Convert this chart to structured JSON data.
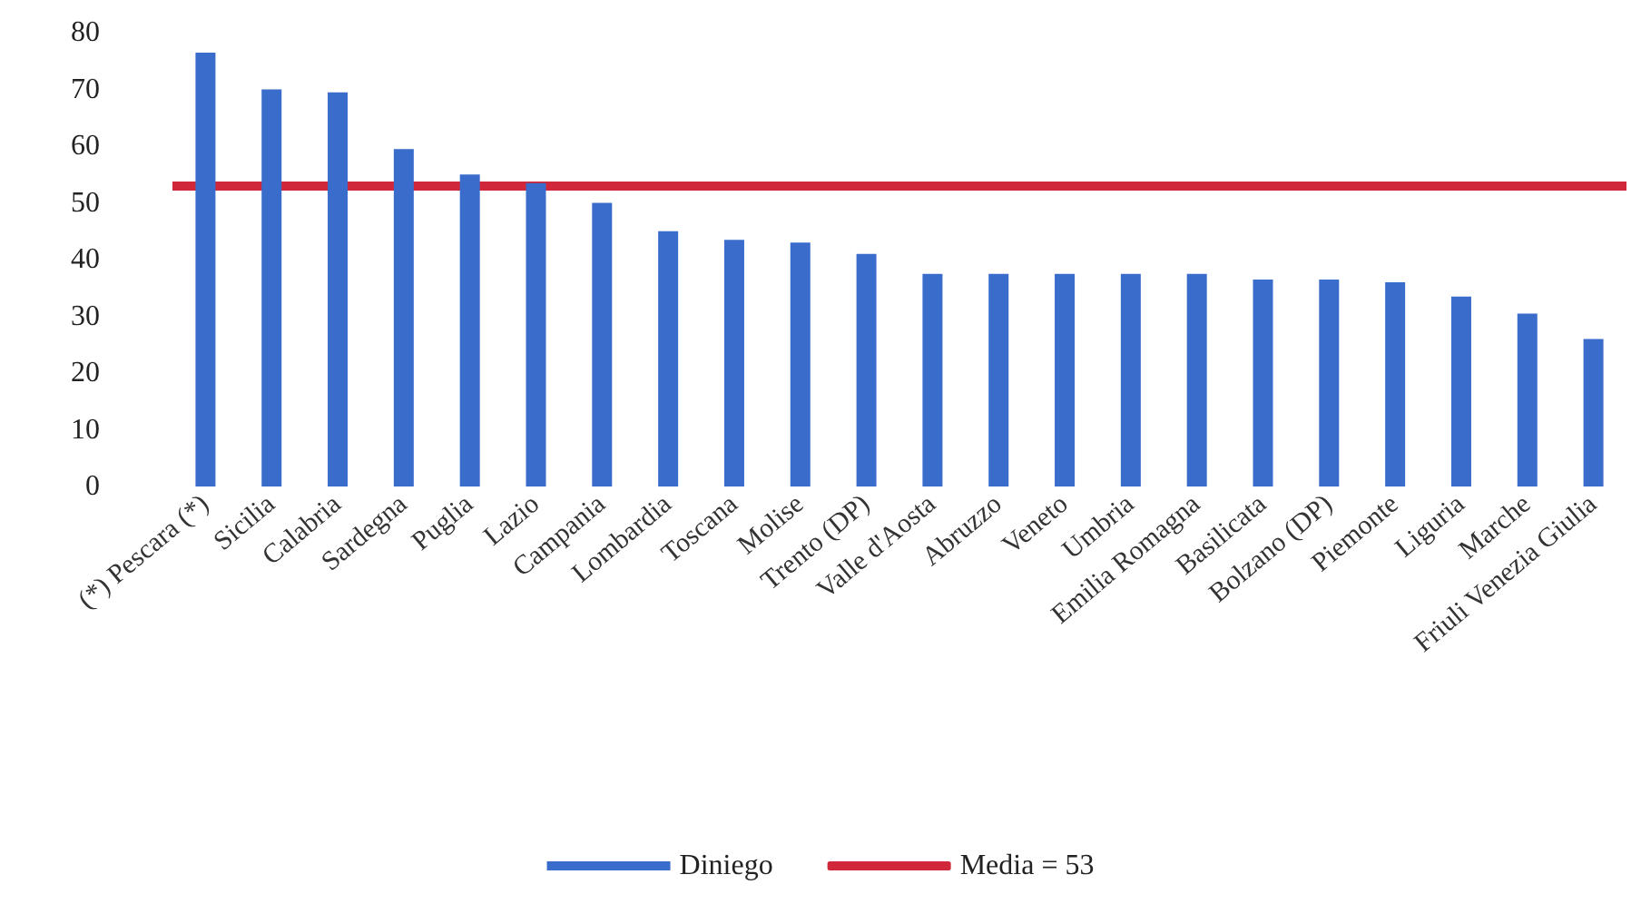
{
  "chart_data": {
    "type": "bar",
    "categories": [
      "(*) Pescara (*)",
      "Sicilia",
      "Calabria",
      "Sardegna",
      "Puglia",
      "Lazio",
      "Campania",
      "Lombardia",
      "Toscana",
      "Molise",
      "Trento (DP)",
      "Valle d'Aosta",
      "Abruzzo",
      "Veneto",
      "Umbria",
      "Emilia Romagna",
      "Basilicata",
      "Bolzano (DP)",
      "Piemonte",
      "Liguria",
      "Marche",
      "Friuli Venezia Giulia"
    ],
    "series": [
      {
        "name": "Diniego",
        "color": "#3a6ccc",
        "values": [
          76.5,
          70,
          69.5,
          59.5,
          55,
          53.5,
          50,
          45,
          43.5,
          43,
          41,
          37.5,
          37.5,
          37.5,
          37.5,
          37.5,
          36.5,
          36.5,
          36,
          33.5,
          30.5,
          26
        ]
      }
    ],
    "ref_lines": [
      {
        "axis": "y",
        "value": 53,
        "label": "Media = 53",
        "color": "#d0283a"
      }
    ],
    "ylim": [
      0,
      80
    ],
    "yticks": [
      0,
      10,
      20,
      30,
      40,
      50,
      60,
      70,
      80
    ],
    "legend": "bottom"
  }
}
